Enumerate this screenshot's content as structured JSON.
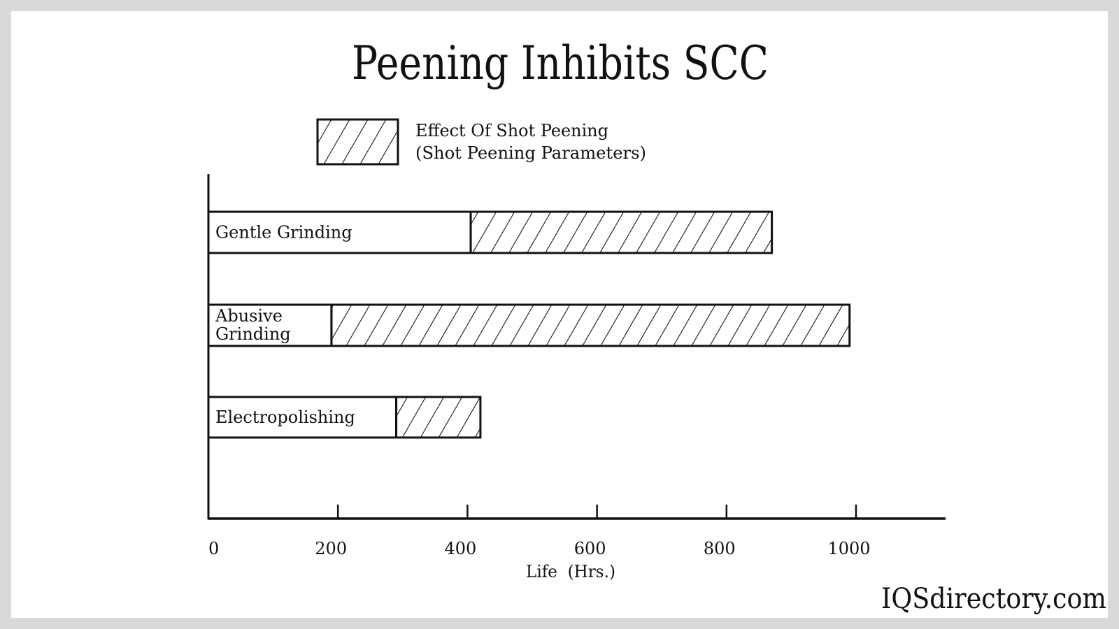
{
  "chart_data": {
    "type": "bar",
    "orientation": "horizontal",
    "stacked": true,
    "title": "Peening Inhibits SCC",
    "xlabel": "Life  (Hrs.)",
    "ylabel": "",
    "xlim": [
      0,
      1140
    ],
    "xticks": [
      0,
      200,
      400,
      600,
      800,
      1000
    ],
    "xtick_labels": [
      "0",
      "200",
      "400",
      "600",
      "800",
      "1000"
    ],
    "grid": false,
    "legend": {
      "placement": "top",
      "entries": [
        {
          "label_line1": "Effect Of Shot Peening",
          "label_line2": "(Shot Peening Parameters)",
          "fill": "hatched"
        }
      ]
    },
    "categories": [
      "Gentle Grinding",
      "Abusive Grinding",
      "Electropolishing"
    ],
    "category_label_lines": [
      [
        "Gentle Grinding"
      ],
      [
        "Abusive",
        "Grinding"
      ],
      [
        "Electropolishing"
      ]
    ],
    "base_life": [
      405,
      190,
      290
    ],
    "total_life_with_peening": [
      870,
      990,
      420
    ],
    "colors": {
      "bar_fill": "#ffffff",
      "stroke": "#111111",
      "background": "#d9d9d9"
    }
  },
  "watermark": "IQSdirectory.com"
}
